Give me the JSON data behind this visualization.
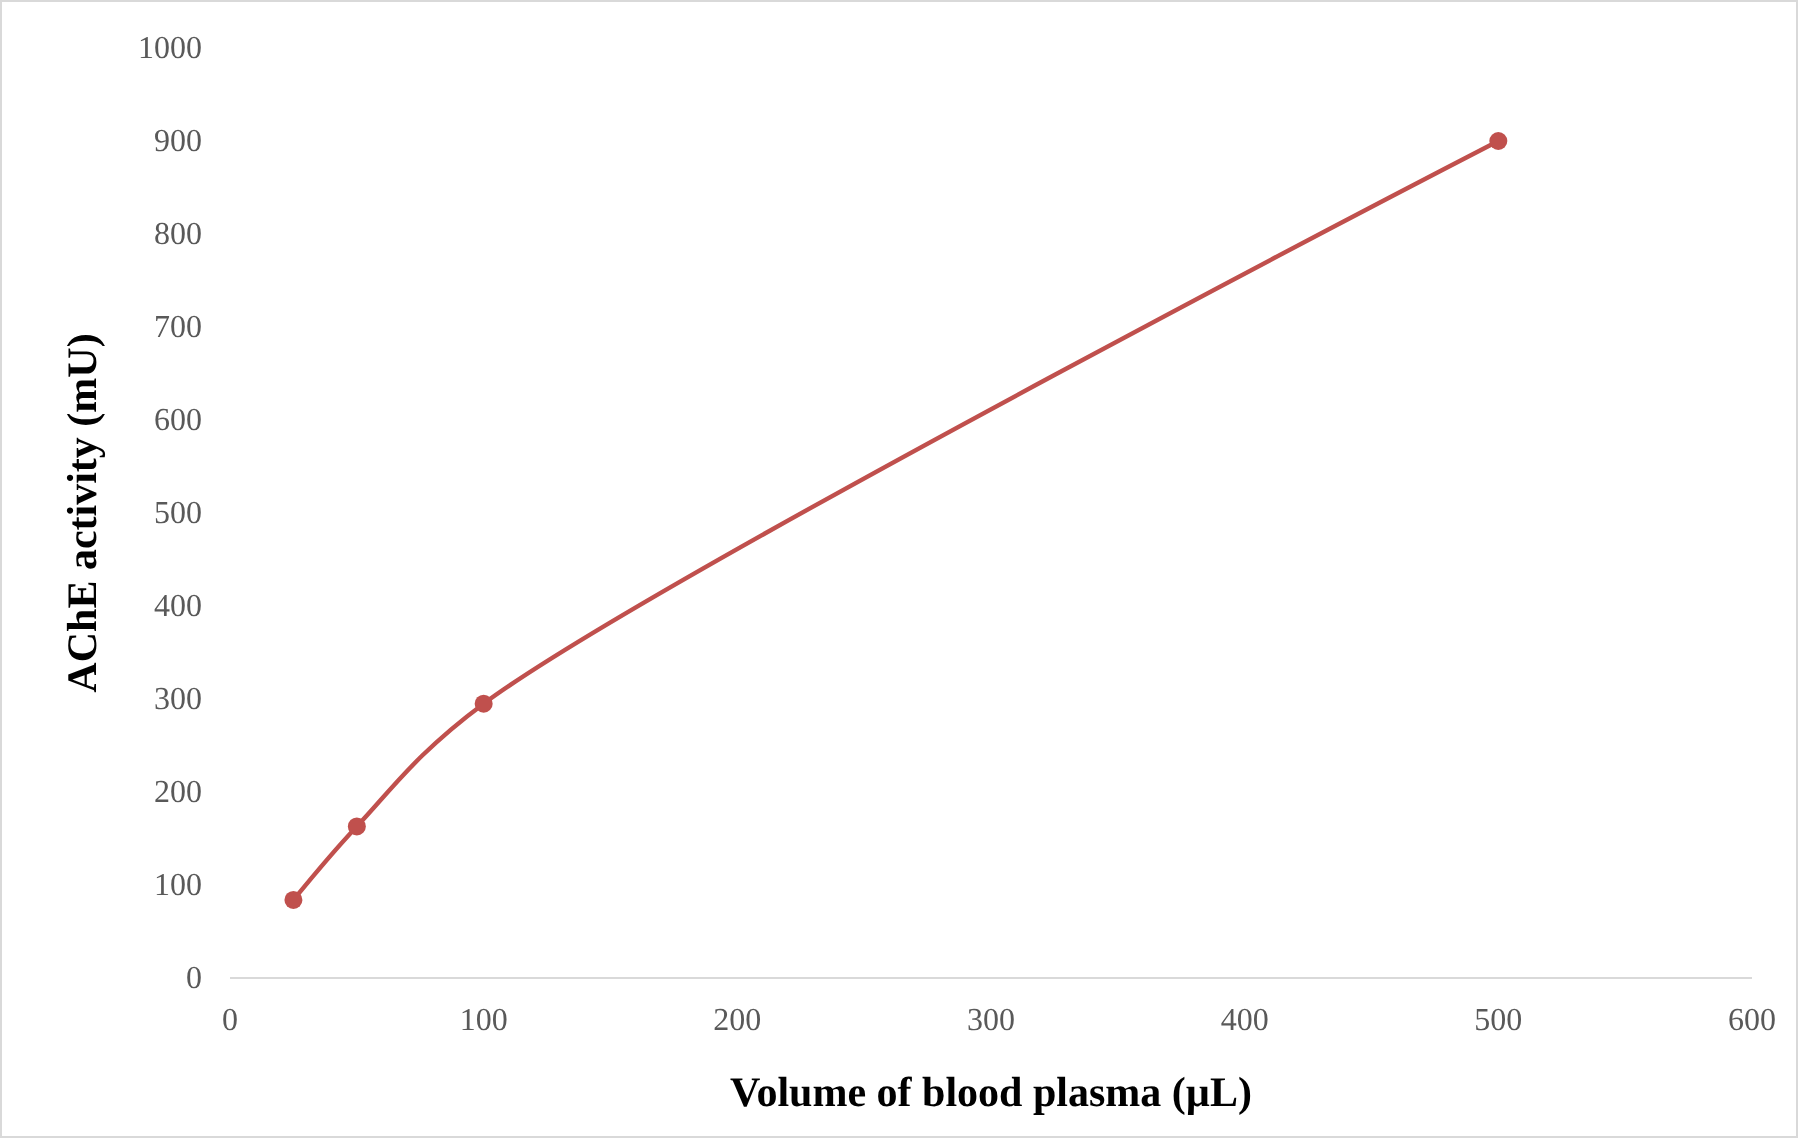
{
  "chart_data": {
    "type": "line",
    "xlabel": "Volume of blood plasma (µL)",
    "ylabel": "AChE activity (mU)",
    "x": [
      25,
      50,
      100,
      500
    ],
    "series": [
      {
        "color": "#c0504d",
        "values": [
          84,
          163,
          295,
          900
        ]
      }
    ],
    "xlim": [
      0,
      600
    ],
    "xticks": [
      0,
      100,
      200,
      300,
      400,
      500,
      600
    ],
    "ylim": [
      0,
      1000
    ],
    "yticks": [
      0,
      100,
      200,
      300,
      400,
      500,
      600,
      700,
      800,
      900,
      1000
    ],
    "grid": false,
    "marker": "circle",
    "line_style": "solid"
  }
}
